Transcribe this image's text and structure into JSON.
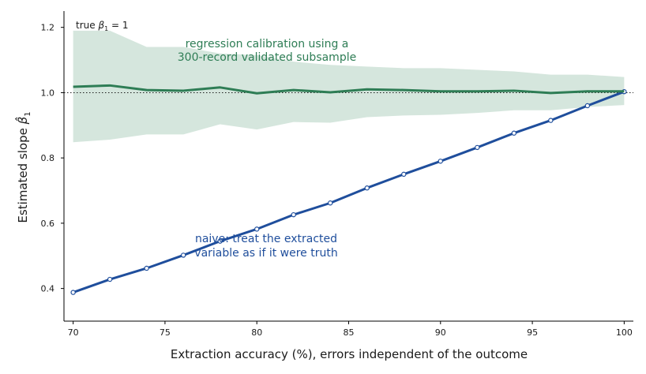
{
  "chart_data": {
    "type": "line",
    "title": "",
    "xlabel": "Extraction accuracy (%), errors independent of the outcome",
    "ylabel_text": "Estimated slope ",
    "ylabel_symbol": "β̂",
    "ylabel_sub": "1",
    "xlim": [
      69.5,
      100.5
    ],
    "ylim": [
      0.3,
      1.25
    ],
    "xticks": [
      70,
      75,
      80,
      85,
      90,
      95,
      100
    ],
    "yticks": [
      0.4,
      0.6,
      0.8,
      1.0,
      1.2
    ],
    "ytick_labels": [
      "0.4",
      "0.6",
      "0.8",
      "1.0",
      "1.2"
    ],
    "reference_line": {
      "y": 1.0,
      "style": "dotted"
    },
    "reference_label": {
      "prefix": "true ",
      "symbol": "β",
      "sub": "1",
      "suffix": " = 1"
    },
    "colors": {
      "naive": "#1f4e9c",
      "calibrated": "#2e7d55",
      "band": "#d5e6dd"
    },
    "series": [
      {
        "key": "naive",
        "x": [
          70,
          72,
          74,
          76,
          78,
          80,
          82,
          84,
          86,
          88,
          90,
          92,
          94,
          96,
          98,
          100
        ],
        "values": [
          0.388,
          0.428,
          0.462,
          0.502,
          0.545,
          0.582,
          0.626,
          0.662,
          0.708,
          0.75,
          0.79,
          0.832,
          0.876,
          0.915,
          0.96,
          1.003
        ],
        "markers": true
      },
      {
        "key": "calibrated",
        "x": [
          70,
          72,
          74,
          76,
          78,
          80,
          82,
          84,
          86,
          88,
          90,
          92,
          94,
          96,
          98,
          100
        ],
        "values": [
          1.018,
          1.022,
          1.008,
          1.006,
          1.016,
          0.998,
          1.008,
          1.001,
          1.01,
          1.008,
          1.004,
          1.004,
          1.006,
          0.999,
          1.004,
          1.004
        ],
        "band_upper": [
          1.19,
          1.19,
          1.14,
          1.14,
          1.12,
          1.115,
          1.095,
          1.085,
          1.08,
          1.075,
          1.075,
          1.07,
          1.065,
          1.055,
          1.055,
          1.048
        ],
        "band_lower": [
          0.848,
          0.856,
          0.872,
          0.872,
          0.903,
          0.887,
          0.91,
          0.908,
          0.925,
          0.93,
          0.932,
          0.938,
          0.946,
          0.946,
          0.956,
          0.962
        ]
      }
    ],
    "annotations": {
      "calibrated": [
        "regression calibration using a",
        "300-record validated subsample"
      ],
      "naive": [
        "naive: treat the extracted",
        "variable as if it were truth"
      ]
    }
  }
}
